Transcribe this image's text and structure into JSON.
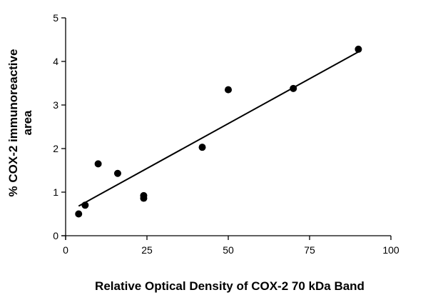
{
  "chart_data": {
    "type": "scatter",
    "xlabel": "Relative Optical Density of COX-2 70 kDa Band",
    "ylabel_lines": [
      "% COX-2 immunoreactive",
      "area"
    ],
    "xlim": [
      0,
      100
    ],
    "ylim": [
      0,
      5
    ],
    "x_ticks": [
      0,
      25,
      50,
      75,
      100
    ],
    "y_ticks": [
      0,
      1,
      2,
      3,
      4,
      5
    ],
    "grid": false,
    "points": [
      {
        "x": 4,
        "y": 0.5
      },
      {
        "x": 6,
        "y": 0.7
      },
      {
        "x": 10,
        "y": 1.65
      },
      {
        "x": 16,
        "y": 1.43
      },
      {
        "x": 24,
        "y": 0.92
      },
      {
        "x": 24,
        "y": 0.86
      },
      {
        "x": 42,
        "y": 2.03
      },
      {
        "x": 50,
        "y": 3.35
      },
      {
        "x": 70,
        "y": 3.38
      },
      {
        "x": 90,
        "y": 4.28
      }
    ],
    "fit_line": {
      "x": [
        4,
        90
      ],
      "y": [
        0.68,
        4.22
      ]
    },
    "colors": {
      "marker": "#000000",
      "line": "#000000",
      "axis": "#000000"
    }
  }
}
